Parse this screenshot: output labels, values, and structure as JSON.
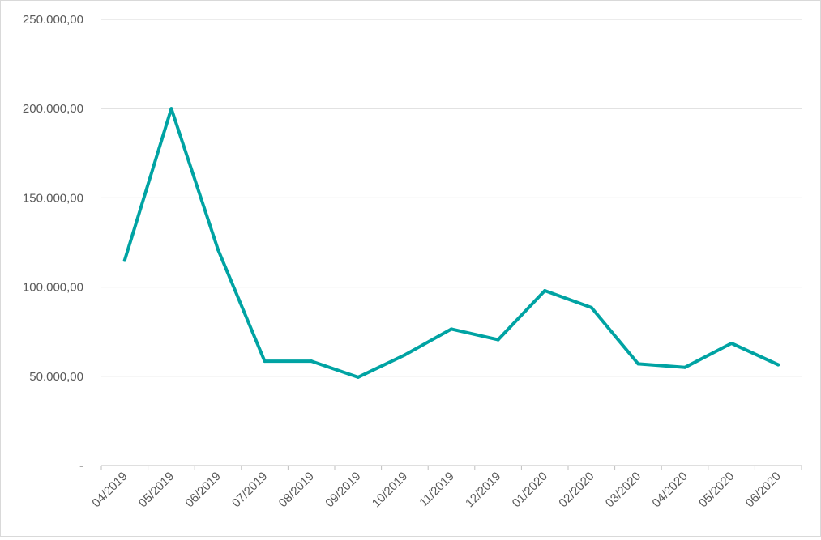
{
  "chart_data": {
    "type": "line",
    "title": "",
    "xlabel": "",
    "ylabel": "",
    "categories": [
      "04/2019",
      "05/2019",
      "06/2019",
      "07/2019",
      "08/2019",
      "09/2019",
      "10/2019",
      "11/2019",
      "12/2019",
      "01/2020",
      "02/2020",
      "03/2020",
      "04/2020",
      "05/2020",
      "06/2020"
    ],
    "series": [
      {
        "values": [
          115000,
          200000,
          121000,
          58500,
          58500,
          49500,
          62000,
          76500,
          70500,
          98000,
          88500,
          57000,
          55000,
          68500,
          56500
        ],
        "color": "#00a3a3"
      }
    ],
    "ylim": [
      0,
      250000
    ],
    "yticks": [
      0,
      50000,
      100000,
      150000,
      200000,
      250000
    ],
    "ytick_labels": [
      "-",
      "50.000,00",
      "100.000,00",
      "150.000,00",
      "200.000,00",
      "250.000,00"
    ],
    "grid": true,
    "legend": "none",
    "gridline_color": "#d9d9d9",
    "axis_color": "#bfbfbf"
  }
}
